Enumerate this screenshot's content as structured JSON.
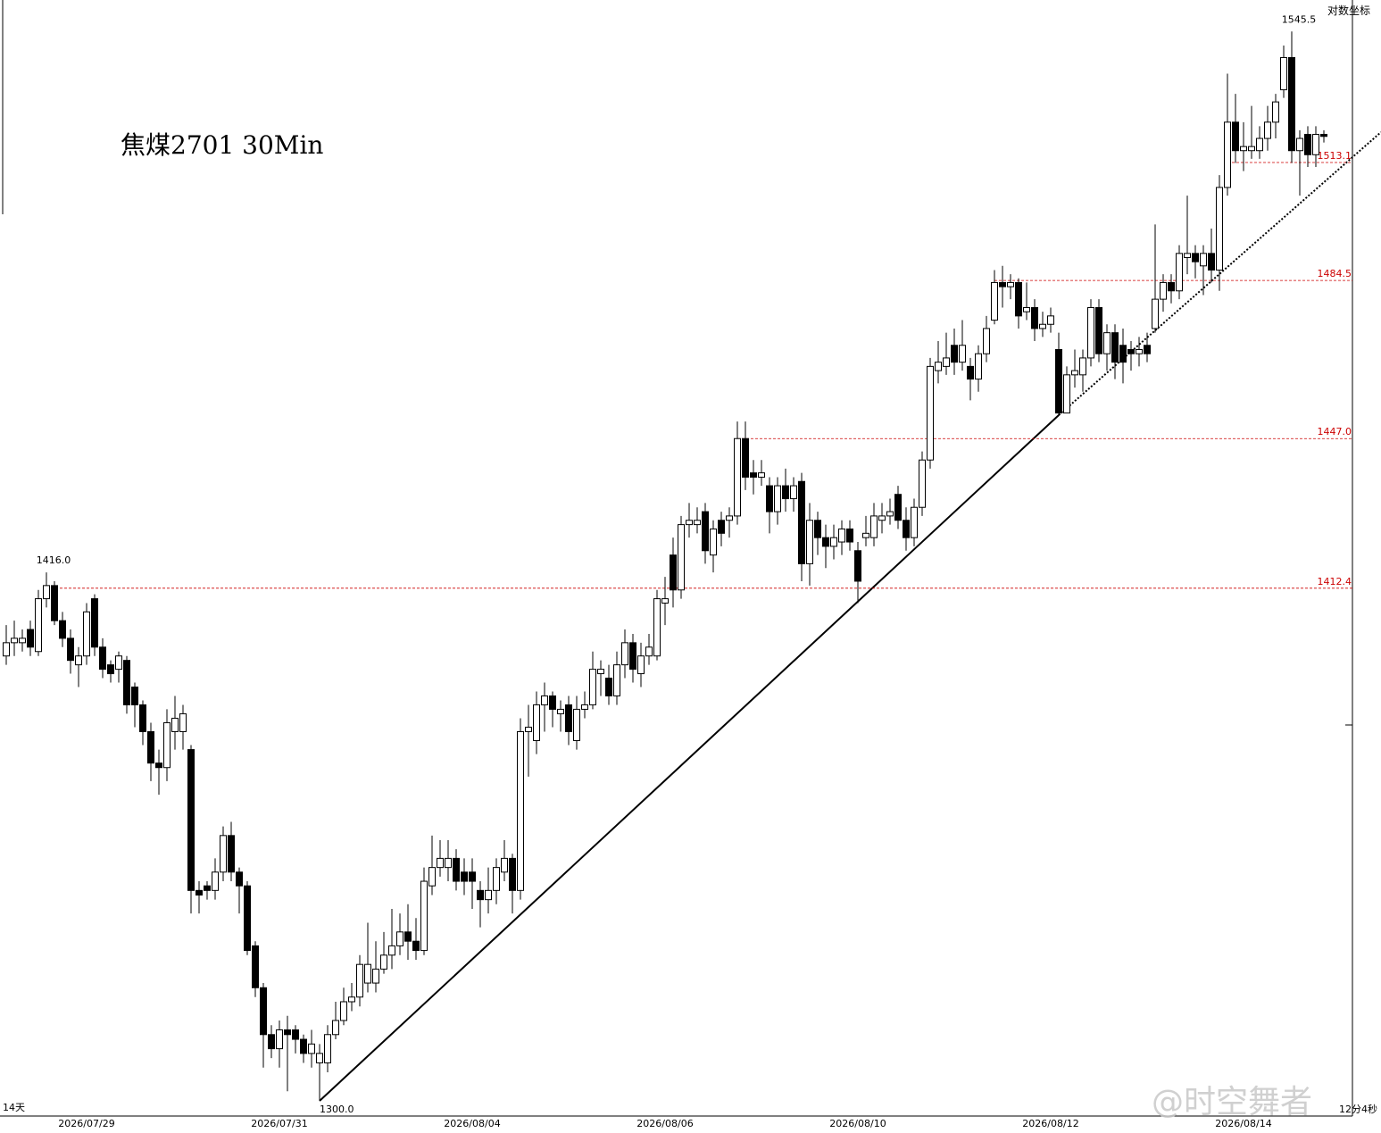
{
  "chart_data": {
    "type": "candlestick",
    "title": "焦煤2701 30Min",
    "scale_label": "对数坐标",
    "period_label": "14天",
    "timer_label": "12分4秒",
    "watermark": "@时空舞者",
    "log_scale": true,
    "ylim": [
      1296.8,
      1553.4
    ],
    "up_color": "#ffffff",
    "down_color": "#000000",
    "edge_color": "#000000",
    "reference_color": "#cc0000",
    "categories": [
      null,
      null,
      null,
      null,
      null,
      null,
      null,
      null,
      null,
      null,
      "2026/07/29",
      null,
      null,
      null,
      null,
      null,
      null,
      null,
      null,
      null,
      null,
      null,
      null,
      null,
      null,
      null,
      null,
      null,
      null,
      null,
      null,
      null,
      null,
      null,
      "2026/07/31",
      null,
      null,
      null,
      null,
      null,
      null,
      null,
      null,
      null,
      null,
      null,
      null,
      null,
      null,
      null,
      null,
      null,
      null,
      null,
      null,
      null,
      null,
      null,
      "2026/08/04",
      null,
      null,
      null,
      null,
      null,
      null,
      null,
      null,
      null,
      null,
      null,
      null,
      null,
      null,
      null,
      null,
      null,
      null,
      null,
      null,
      null,
      null,
      null,
      "2026/08/06",
      null,
      null,
      null,
      null,
      null,
      null,
      null,
      null,
      null,
      null,
      null,
      null,
      null,
      null,
      null,
      null,
      null,
      null,
      null,
      null,
      null,
      null,
      null,
      "2026/08/10",
      null,
      null,
      null,
      null,
      null,
      null,
      null,
      null,
      null,
      null,
      null,
      null,
      null,
      null,
      null,
      null,
      null,
      null,
      null,
      null,
      null,
      null,
      null,
      "2026/08/12",
      null,
      null,
      null,
      null,
      null,
      null,
      null,
      null,
      null,
      null,
      null,
      null,
      null,
      null,
      null,
      null,
      null,
      null,
      null,
      null,
      null,
      null,
      null,
      "2026/08/14",
      null,
      null,
      null,
      null,
      null,
      null,
      null,
      null,
      null,
      null
    ],
    "candles": [
      [
        1397,
        1404,
        1395,
        1400
      ],
      [
        1400,
        1405,
        1397,
        1401
      ],
      [
        1400,
        1403,
        1398,
        1401
      ],
      [
        1403,
        1405,
        1397,
        1399
      ],
      [
        1398,
        1412,
        1397,
        1410
      ],
      [
        1410,
        1416,
        1408,
        1413
      ],
      [
        1413,
        1414,
        1404,
        1405
      ],
      [
        1405,
        1407,
        1399,
        1401
      ],
      [
        1401,
        1403,
        1393,
        1396
      ],
      [
        1395,
        1399,
        1390,
        1397
      ],
      [
        1397,
        1409,
        1395,
        1407
      ],
      [
        1410,
        1411,
        1397,
        1399
      ],
      [
        1399,
        1401,
        1392,
        1394
      ],
      [
        1395,
        1396,
        1391,
        1393
      ],
      [
        1394,
        1398,
        1391,
        1397
      ],
      [
        1396,
        1397,
        1384,
        1386
      ],
      [
        1390,
        1391,
        1381,
        1386
      ],
      [
        1386,
        1387,
        1377,
        1380
      ],
      [
        1380,
        1382,
        1369,
        1373
      ],
      [
        1373,
        1376,
        1366,
        1372
      ],
      [
        1372,
        1385,
        1369,
        1382
      ],
      [
        1380,
        1388,
        1376,
        1383
      ],
      [
        1380,
        1386,
        1376,
        1384
      ],
      [
        1376,
        1377,
        1340,
        1345
      ],
      [
        1345,
        1347,
        1340,
        1344
      ],
      [
        1346,
        1347,
        1343,
        1345
      ],
      [
        1345,
        1352,
        1343,
        1349
      ],
      [
        1349,
        1359,
        1347,
        1357
      ],
      [
        1357,
        1360,
        1347,
        1349
      ],
      [
        1349,
        1350,
        1340,
        1346
      ],
      [
        1346,
        1347,
        1331,
        1332
      ],
      [
        1333,
        1334,
        1322,
        1324
      ],
      [
        1324,
        1325,
        1307,
        1314
      ],
      [
        1314,
        1316,
        1309,
        1311
      ],
      [
        1311,
        1317,
        1307,
        1315
      ],
      [
        1315,
        1318,
        1302,
        1314
      ],
      [
        1315,
        1316,
        1310,
        1313
      ],
      [
        1313,
        1314,
        1308,
        1310
      ],
      [
        1310,
        1315,
        1307,
        1312
      ],
      [
        1308,
        1312,
        1300,
        1310
      ],
      [
        1308,
        1316,
        1306,
        1314
      ],
      [
        1314,
        1321,
        1313,
        1317
      ],
      [
        1317,
        1324,
        1316,
        1321
      ],
      [
        1321,
        1325,
        1319,
        1322
      ],
      [
        1322,
        1331,
        1320,
        1329
      ],
      [
        1325,
        1338,
        1323,
        1329
      ],
      [
        1325,
        1334,
        1323,
        1328
      ],
      [
        1328,
        1336,
        1327,
        1331
      ],
      [
        1331,
        1341,
        1328,
        1333
      ],
      [
        1333,
        1340,
        1331,
        1336
      ],
      [
        1336,
        1342,
        1330,
        1334
      ],
      [
        1334,
        1339,
        1330,
        1332
      ],
      [
        1332,
        1350,
        1331,
        1347
      ],
      [
        1346,
        1357,
        1344,
        1350
      ],
      [
        1350,
        1356,
        1348,
        1352
      ],
      [
        1350,
        1356,
        1347,
        1352
      ],
      [
        1352,
        1354,
        1345,
        1347
      ],
      [
        1349,
        1352,
        1344,
        1347
      ],
      [
        1349,
        1352,
        1341,
        1347
      ],
      [
        1345,
        1347,
        1337,
        1343
      ],
      [
        1343,
        1350,
        1340,
        1345
      ],
      [
        1345,
        1352,
        1342,
        1350
      ],
      [
        1349,
        1356,
        1347,
        1352
      ],
      [
        1352,
        1353,
        1340,
        1345
      ],
      [
        1345,
        1383,
        1343,
        1380
      ],
      [
        1380,
        1386,
        1370,
        1381
      ],
      [
        1378,
        1389,
        1375,
        1386
      ],
      [
        1386,
        1391,
        1380,
        1388
      ],
      [
        1388,
        1389,
        1381,
        1385
      ],
      [
        1384,
        1387,
        1380,
        1385
      ],
      [
        1386,
        1388,
        1377,
        1380
      ],
      [
        1378,
        1388,
        1376,
        1385
      ],
      [
        1385,
        1389,
        1383,
        1386
      ],
      [
        1386,
        1398,
        1385,
        1394
      ],
      [
        1393,
        1396,
        1388,
        1394
      ],
      [
        1392,
        1395,
        1386,
        1388
      ],
      [
        1388,
        1398,
        1386,
        1395
      ],
      [
        1395,
        1403,
        1392,
        1400
      ],
      [
        1400,
        1402,
        1391,
        1394
      ],
      [
        1393,
        1400,
        1390,
        1397
      ],
      [
        1397,
        1402,
        1395,
        1399
      ],
      [
        1397,
        1412,
        1396,
        1410
      ],
      [
        1409,
        1415,
        1404,
        1410
      ],
      [
        1420,
        1424,
        1408,
        1412
      ],
      [
        1412,
        1429,
        1410,
        1427
      ],
      [
        1427,
        1432,
        1424,
        1428
      ],
      [
        1427,
        1431,
        1425,
        1428
      ],
      [
        1430,
        1432,
        1418,
        1421
      ],
      [
        1420,
        1428,
        1416,
        1426
      ],
      [
        1428,
        1430,
        1422,
        1425
      ],
      [
        1428,
        1431,
        1424,
        1429
      ],
      [
        1429,
        1451,
        1427,
        1447
      ],
      [
        1447,
        1451,
        1435,
        1438
      ],
      [
        1439,
        1442,
        1434,
        1438
      ],
      [
        1438,
        1442,
        1436,
        1439
      ],
      [
        1436,
        1438,
        1425,
        1430
      ],
      [
        1430,
        1438,
        1427,
        1436
      ],
      [
        1436,
        1440,
        1430,
        1433
      ],
      [
        1433,
        1438,
        1430,
        1436
      ],
      [
        1437,
        1439,
        1414,
        1418
      ],
      [
        1418,
        1432,
        1413,
        1428
      ],
      [
        1428,
        1430,
        1420,
        1424
      ],
      [
        1424,
        1427,
        1417,
        1422
      ],
      [
        1422,
        1427,
        1419,
        1424
      ],
      [
        1423,
        1428,
        1420,
        1426
      ],
      [
        1426,
        1428,
        1421,
        1423
      ],
      [
        1421,
        1423,
        1409,
        1414
      ],
      [
        1424,
        1429,
        1422,
        1425
      ],
      [
        1424,
        1432,
        1422,
        1429
      ],
      [
        1428,
        1432,
        1425,
        1429
      ],
      [
        1429,
        1433,
        1427,
        1430
      ],
      [
        1434,
        1436,
        1426,
        1428
      ],
      [
        1428,
        1431,
        1421,
        1424
      ],
      [
        1424,
        1433,
        1422,
        1431
      ],
      [
        1431,
        1444,
        1429,
        1442
      ],
      [
        1442,
        1466,
        1440,
        1464
      ],
      [
        1463,
        1470,
        1460,
        1465
      ],
      [
        1464,
        1472,
        1462,
        1466
      ],
      [
        1469,
        1473,
        1462,
        1465
      ],
      [
        1465,
        1475,
        1463,
        1469
      ],
      [
        1464,
        1466,
        1456,
        1461
      ],
      [
        1461,
        1469,
        1458,
        1467
      ],
      [
        1467,
        1476,
        1465,
        1473
      ],
      [
        1475,
        1487,
        1474,
        1484
      ],
      [
        1484,
        1488,
        1478,
        1483
      ],
      [
        1483,
        1486,
        1480,
        1484
      ],
      [
        1484,
        1485,
        1473,
        1476
      ],
      [
        1477,
        1484,
        1475,
        1478
      ],
      [
        1478,
        1480,
        1470,
        1473
      ],
      [
        1473,
        1477,
        1471,
        1474
      ],
      [
        1474,
        1478,
        1472,
        1476
      ],
      [
        1468,
        1472,
        1452.5,
        1453
      ],
      [
        1453,
        1464,
        1454,
        1462
      ],
      [
        1462,
        1468,
        1459,
        1463
      ],
      [
        1462,
        1468,
        1458,
        1466
      ],
      [
        1466,
        1480,
        1464,
        1478
      ],
      [
        1478,
        1480,
        1465,
        1467
      ],
      [
        1467,
        1474,
        1463,
        1472
      ],
      [
        1472,
        1474,
        1461,
        1465
      ],
      [
        1469,
        1473,
        1460,
        1465
      ],
      [
        1468,
        1470,
        1463,
        1467
      ],
      [
        1467,
        1471,
        1464,
        1468
      ],
      [
        1469,
        1472,
        1465,
        1467
      ],
      [
        1473,
        1498,
        1472,
        1480
      ],
      [
        1480,
        1486,
        1477,
        1484
      ],
      [
        1484,
        1486,
        1479,
        1482
      ],
      [
        1482,
        1493,
        1480,
        1491
      ],
      [
        1490,
        1505,
        1486,
        1491
      ],
      [
        1491,
        1493,
        1485,
        1489
      ],
      [
        1488,
        1493,
        1481,
        1491
      ],
      [
        1491,
        1497,
        1484,
        1487
      ],
      [
        1487,
        1510,
        1482,
        1507
      ],
      [
        1507,
        1535,
        1505,
        1523
      ],
      [
        1523,
        1530,
        1513,
        1516
      ],
      [
        1516,
        1523,
        1511,
        1517
      ],
      [
        1516,
        1527,
        1514,
        1517
      ],
      [
        1516,
        1522,
        1514,
        1519
      ],
      [
        1519,
        1527,
        1516,
        1523
      ],
      [
        1523,
        1530,
        1519,
        1528
      ],
      [
        1531,
        1542,
        1529,
        1539
      ],
      [
        1539,
        1545.5,
        1513,
        1516
      ],
      [
        1516,
        1521,
        1505,
        1519
      ],
      [
        1520,
        1522,
        1512,
        1515
      ],
      [
        1515,
        1522,
        1512,
        1520
      ],
      [
        1520,
        1521,
        1518,
        1519.5
      ]
    ],
    "reference_lines": [
      {
        "value": 1513.1,
        "label": "1513.1"
      },
      {
        "value": 1484.5,
        "label": "1484.5"
      },
      {
        "value": 1447,
        "label": "1447.0"
      },
      {
        "value": 1412.4,
        "label": "1412.4"
      }
    ],
    "annotations": [
      {
        "value": 1545.5,
        "label": "1545.5"
      },
      {
        "value": 1416,
        "label": "1416.0"
      },
      {
        "value": 1300,
        "label": "1300.0"
      }
    ]
  }
}
